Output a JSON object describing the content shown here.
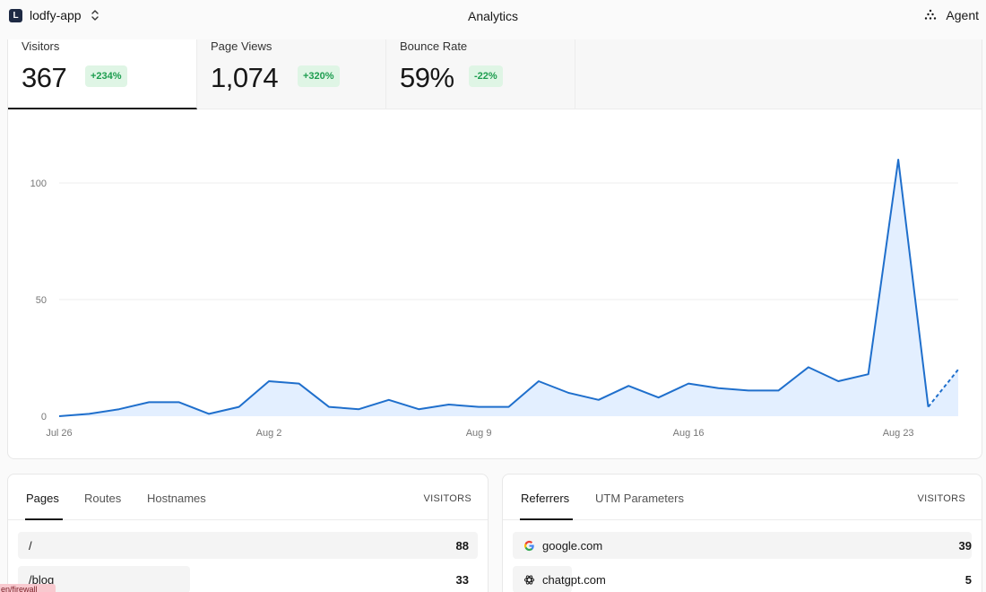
{
  "topbar": {
    "logo_letter": "L",
    "project_name": "lodfy-app",
    "title": "Analytics",
    "agent_label": "Agent"
  },
  "metrics": [
    {
      "label": "Visitors",
      "value": "367",
      "delta": "+234%",
      "active": true
    },
    {
      "label": "Page Views",
      "value": "1,074",
      "delta": "+320%",
      "active": false
    },
    {
      "label": "Bounce Rate",
      "value": "59%",
      "delta": "-22%",
      "active": false
    }
  ],
  "chart_data": {
    "type": "area",
    "x_tick_labels": [
      "Jul 26",
      "Aug 2",
      "Aug 9",
      "Aug 16",
      "Aug 23"
    ],
    "y_tick_labels": [
      "0",
      "50",
      "100"
    ],
    "ylim": [
      0,
      120
    ],
    "grid": true,
    "series": [
      {
        "values": [
          0,
          1,
          3,
          6,
          6,
          1,
          4,
          15,
          14,
          4,
          3,
          7,
          3,
          5,
          4,
          4,
          15,
          10,
          7,
          13,
          8,
          14,
          12,
          11,
          11,
          21,
          15,
          18,
          110,
          4,
          20
        ],
        "projected_from_index": 29
      }
    ],
    "colors": {
      "line": "#1f6fcc",
      "fill": "#e3efff",
      "grid": "#ececec"
    }
  },
  "pages_panel": {
    "tabs": [
      "Pages",
      "Routes",
      "Hostnames"
    ],
    "active_tab": 0,
    "column": "VISITORS",
    "rows": [
      {
        "label": "/",
        "value": "88"
      },
      {
        "label": "/blog",
        "value": "33"
      }
    ]
  },
  "referrers_panel": {
    "tabs": [
      "Referrers",
      "UTM Parameters"
    ],
    "active_tab": 0,
    "column": "VISITORS",
    "rows": [
      {
        "label": "google.com",
        "value": "39",
        "icon": "google-icon"
      },
      {
        "label": "chatgpt.com",
        "value": "5",
        "icon": "chatgpt-icon"
      }
    ]
  },
  "overlay_label": "en/firewall"
}
